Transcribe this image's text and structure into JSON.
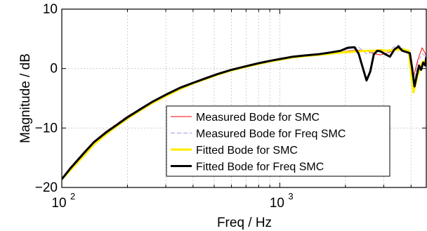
{
  "chart_data": {
    "type": "line",
    "xlabel": "Freq / Hz",
    "ylabel": "Magnitude / dB",
    "x_scale": "log",
    "xlim": [
      100,
      4700
    ],
    "ylim": [
      -20,
      10
    ],
    "x_ticks": [
      100,
      1000
    ],
    "x_tick_labels": [
      {
        "base": "10",
        "exp": "2"
      },
      {
        "base": "10",
        "exp": "3"
      }
    ],
    "y_ticks": [
      -20,
      -10,
      0,
      10
    ],
    "y_tick_labels": [
      "−20",
      "−10",
      "0",
      "10"
    ],
    "grid": true,
    "legend_position": "lower-right",
    "series": [
      {
        "name": "Measured Bode for SMC",
        "color": "#ff0000",
        "style": "solid-thin",
        "x": [
          100,
          110,
          125,
          140,
          160,
          180,
          200,
          230,
          260,
          300,
          350,
          400,
          460,
          520,
          600,
          700,
          800,
          900,
          1000,
          1150,
          1300,
          1500,
          1700,
          1900,
          2100,
          2300,
          2500,
          2700,
          2900,
          3100,
          3300,
          3500,
          3700,
          3900,
          4100,
          4300,
          4500,
          4700
        ],
        "y": [
          -18.5,
          -16.5,
          -14.2,
          -12.3,
          -10.5,
          -9.2,
          -8.0,
          -6.8,
          -5.5,
          -4.5,
          -3.3,
          -2.5,
          -1.7,
          -1.0,
          -0.3,
          0.3,
          0.8,
          1.2,
          1.5,
          1.9,
          2.1,
          2.3,
          2.6,
          2.8,
          3.0,
          3.1,
          3.0,
          2.5,
          2.3,
          2.6,
          3.0,
          3.4,
          3.2,
          2.8,
          -1.5,
          1.5,
          3.5,
          2.2
        ]
      },
      {
        "name": "Measured Bode for Freq SMC",
        "color": "#b6a6e8",
        "style": "dashed-thin",
        "x": [
          100,
          110,
          125,
          140,
          160,
          180,
          200,
          230,
          260,
          300,
          350,
          400,
          460,
          520,
          600,
          700,
          800,
          900,
          1000,
          1150,
          1300,
          1500,
          1700,
          1900,
          2100,
          2300,
          2500,
          2700,
          2900,
          3100,
          3300,
          3500,
          3700,
          3900,
          4100,
          4300,
          4500,
          4700
        ],
        "y": [
          -18.5,
          -16.5,
          -14.2,
          -12.3,
          -10.5,
          -9.2,
          -8.0,
          -6.8,
          -5.5,
          -4.5,
          -3.3,
          -2.5,
          -1.7,
          -1.0,
          -0.3,
          0.3,
          0.8,
          1.2,
          1.5,
          1.9,
          2.1,
          2.3,
          2.6,
          3.0,
          3.4,
          3.6,
          2.5,
          2.8,
          2.9,
          2.5,
          3.5,
          4.0,
          3.3,
          2.6,
          -3.0,
          1.0,
          2.5,
          2.0
        ]
      },
      {
        "name": "Fitted Bode for SMC",
        "color": "#ffee00",
        "style": "solid-thick",
        "x": [
          100,
          110,
          125,
          140,
          160,
          180,
          200,
          230,
          260,
          300,
          350,
          400,
          460,
          520,
          600,
          700,
          800,
          900,
          1000,
          1150,
          1300,
          1500,
          1700,
          1900,
          2100,
          2300,
          2500,
          2700,
          2900,
          3100,
          3300,
          3500,
          3700,
          3900,
          4100,
          4300,
          4500,
          4700
        ],
        "y": [
          -18.6,
          -17.0,
          -14.8,
          -12.8,
          -11.0,
          -9.6,
          -8.4,
          -7.0,
          -5.8,
          -4.6,
          -3.4,
          -2.5,
          -1.7,
          -1.0,
          -0.3,
          0.3,
          0.8,
          1.2,
          1.5,
          1.9,
          2.1,
          2.3,
          2.5,
          2.7,
          2.8,
          2.9,
          3.0,
          3.0,
          3.1,
          3.0,
          3.1,
          3.2,
          3.2,
          3.0,
          -4.0,
          -1.0,
          1.0,
          1.5
        ]
      },
      {
        "name": "Fitted Bode for Freq SMC",
        "color": "#000000",
        "style": "solid-thick",
        "x": [
          100,
          110,
          125,
          140,
          160,
          180,
          200,
          230,
          260,
          300,
          350,
          400,
          460,
          520,
          600,
          700,
          800,
          900,
          1000,
          1150,
          1300,
          1500,
          1700,
          1900,
          2050,
          2200,
          2300,
          2400,
          2500,
          2600,
          2700,
          2800,
          2900,
          3050,
          3200,
          3350,
          3500,
          3650,
          3800,
          3950,
          4050,
          4150,
          4250,
          4350,
          4450,
          4550,
          4650,
          4700
        ],
        "y": [
          -18.6,
          -16.7,
          -14.4,
          -12.4,
          -10.7,
          -9.4,
          -8.2,
          -6.8,
          -5.6,
          -4.4,
          -3.2,
          -2.4,
          -1.6,
          -0.9,
          -0.2,
          0.4,
          0.9,
          1.3,
          1.6,
          2.0,
          2.2,
          2.4,
          2.7,
          3.0,
          3.5,
          3.6,
          2.5,
          0.2,
          -2.0,
          -0.5,
          2.4,
          3.0,
          2.9,
          2.4,
          2.0,
          3.2,
          3.7,
          3.0,
          2.8,
          2.6,
          0.0,
          -3.0,
          -1.2,
          0.5,
          -0.2,
          1.0,
          0.5,
          2.0
        ]
      }
    ]
  }
}
